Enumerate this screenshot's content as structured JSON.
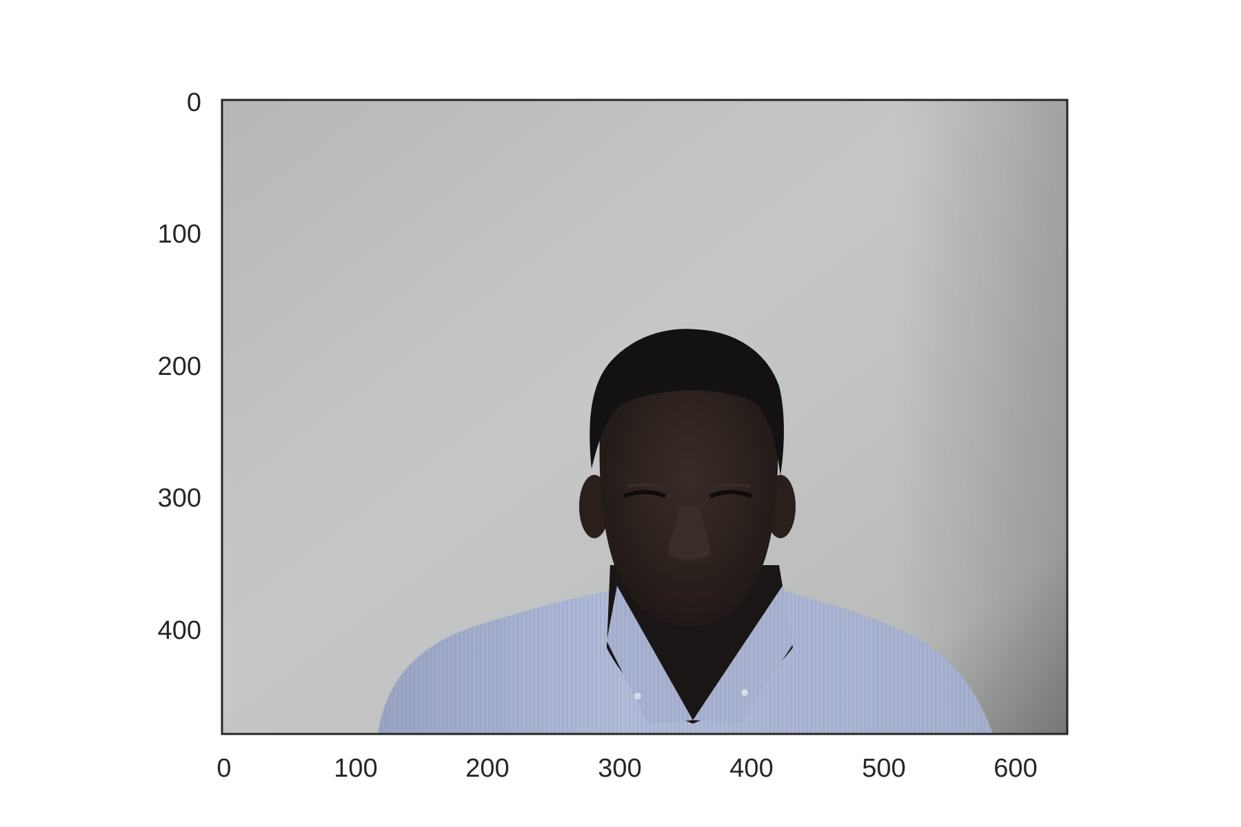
{
  "image_plot": {
    "x_ticks": [
      "0",
      "100",
      "200",
      "300",
      "400",
      "500",
      "600"
    ],
    "y_ticks": [
      "0",
      "100",
      "200",
      "300",
      "400"
    ],
    "colors": {
      "frame": "#262626",
      "wall_top": "#b8bab7",
      "wall_bottom": "#c9cbca",
      "hair": "#151314",
      "skin": "#2b211d",
      "shirt": "#aab4cf",
      "collar_shadow": "#1b1717"
    }
  }
}
